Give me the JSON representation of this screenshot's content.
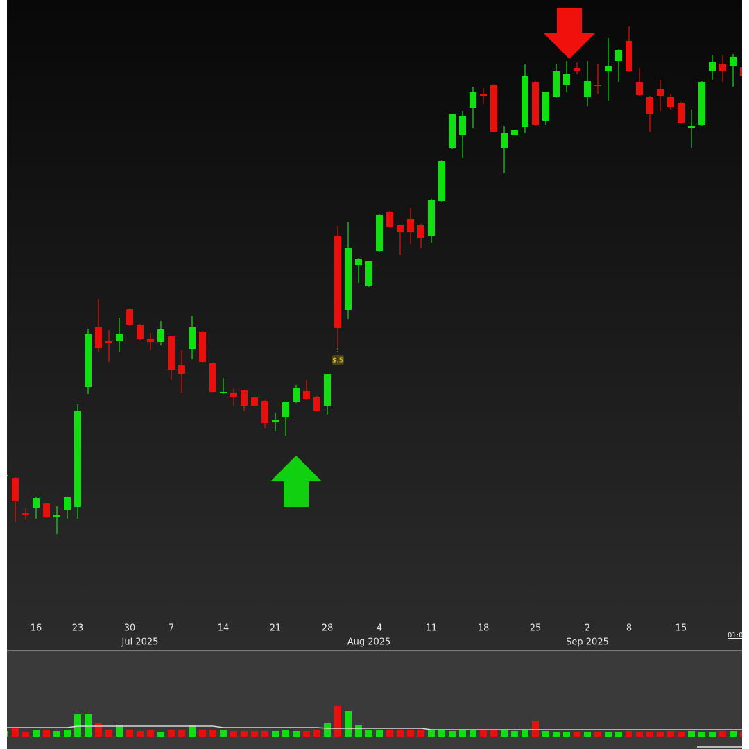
{
  "chart_data": {
    "type": "candlestick",
    "categories": [
      null,
      null,
      null,
      "16",
      null,
      null,
      null,
      "23",
      null,
      null,
      null,
      null,
      "30",
      null,
      null,
      null,
      "7",
      null,
      null,
      null,
      null,
      "14",
      null,
      null,
      null,
      null,
      "21",
      null,
      null,
      null,
      null,
      "28",
      null,
      null,
      null,
      null,
      "4",
      null,
      null,
      null,
      null,
      "11",
      null,
      null,
      null,
      null,
      "18",
      null,
      null,
      null,
      null,
      "25",
      null,
      null,
      null,
      null,
      "2",
      null,
      null,
      null,
      "8",
      null,
      null,
      null,
      null,
      "15",
      null,
      null,
      null,
      null,
      null,
      null
    ],
    "month_labels": [
      null,
      null,
      null,
      null,
      null,
      null,
      null,
      null,
      null,
      null,
      null,
      null,
      null,
      "Jul 2025",
      null,
      null,
      null,
      null,
      null,
      null,
      null,
      null,
      null,
      null,
      null,
      null,
      null,
      null,
      null,
      null,
      null,
      null,
      null,
      null,
      null,
      "Aug 2025",
      null,
      null,
      null,
      null,
      null,
      null,
      null,
      null,
      null,
      null,
      null,
      null,
      null,
      null,
      null,
      null,
      null,
      null,
      null,
      null,
      "Sep 2025",
      null,
      null,
      null,
      null,
      null,
      null,
      null,
      null,
      null,
      null,
      null,
      null,
      null,
      null,
      null
    ],
    "open": [
      21.3,
      21.1,
      16.0,
      16.8,
      17.4,
      15.4,
      16.4,
      16.9,
      34.2,
      42.8,
      40.8,
      40.8,
      45.4,
      43.2,
      41.1,
      40.7,
      41.5,
      37.3,
      39.7,
      42.2,
      37.6,
      33.4,
      33.4,
      33.7,
      32.7,
      32.2,
      29.1,
      29.9,
      32.0,
      33.6,
      32.8,
      31.5,
      56.0,
      45.3,
      51.8,
      48.7,
      53.8,
      59.5,
      57.5,
      58.4,
      57.6,
      56.0,
      61.0,
      68.6,
      70.5,
      74.4,
      76.4,
      77.8,
      68.7,
      70.6,
      71.7,
      78.2,
      72.6,
      76.0,
      77.8,
      80.2,
      76.0,
      77.8,
      79.7,
      81.2,
      84.1,
      78.2,
      76.0,
      77.2,
      76.0,
      75.2,
      71.5,
      72.0,
      79.8,
      80.7,
      80.5,
      80.3
    ],
    "high": [
      21.5,
      21.2,
      16.7,
      18.3,
      17.5,
      17.0,
      18.4,
      31.7,
      42.6,
      46.9,
      42.4,
      44.2,
      45.5,
      43.3,
      42.0,
      43.7,
      41.6,
      39.5,
      44.4,
      42.3,
      37.7,
      35.5,
      34.0,
      33.8,
      32.8,
      32.3,
      30.5,
      32.1,
      34.5,
      35.2,
      32.9,
      36.1,
      57.4,
      58.0,
      52.8,
      52.4,
      59.1,
      59.6,
      57.6,
      60.0,
      57.7,
      61.3,
      66.9,
      73.6,
      74.0,
      77.5,
      77.3,
      77.9,
      71.8,
      71.3,
      80.7,
      78.3,
      76.8,
      80.8,
      81.2,
      81.0,
      81.2,
      80.8,
      84.5,
      82.9,
      86.2,
      80.2,
      76.1,
      78.5,
      76.5,
      75.3,
      74.2,
      78.3,
      82.0,
      82.0,
      82.2,
      80.4
    ],
    "low": [
      21.3,
      14.8,
      15.0,
      15.2,
      15.3,
      13.0,
      15.2,
      15.2,
      33.2,
      39.3,
      37.8,
      39.2,
      43.1,
      41.0,
      39.5,
      40.2,
      35.2,
      33.3,
      38.2,
      37.7,
      33.4,
      33.2,
      31.5,
      30.8,
      31.4,
      28.3,
      27.8,
      27.2,
      31.9,
      32.3,
      30.7,
      30.2,
      40.0,
      44.0,
      49.2,
      48.6,
      53.7,
      57.2,
      53.3,
      54.8,
      54.2,
      55.0,
      60.9,
      68.5,
      67.2,
      71.5,
      75.0,
      70.9,
      65.0,
      70.5,
      70.8,
      71.9,
      72.0,
      75.9,
      76.7,
      79.3,
      74.7,
      76.5,
      75.5,
      78.2,
      79.6,
      76.2,
      71.0,
      74.0,
      74.2,
      72.2,
      68.7,
      71.9,
      78.5,
      78.2,
      77.5,
      78.9
    ],
    "close": [
      21.5,
      17.7,
      15.9,
      18.2,
      15.4,
      15.8,
      18.3,
      30.8,
      41.8,
      39.8,
      40.5,
      41.9,
      43.2,
      41.1,
      40.7,
      42.5,
      36.7,
      36.1,
      42.9,
      37.8,
      33.5,
      33.5,
      32.8,
      31.5,
      31.5,
      29.0,
      29.5,
      32.0,
      34.0,
      32.4,
      30.8,
      36.0,
      42.7,
      54.2,
      52.7,
      52.3,
      59.0,
      57.3,
      56.5,
      56.5,
      55.7,
      61.2,
      66.8,
      73.5,
      73.3,
      76.7,
      76.3,
      71.0,
      70.8,
      71.2,
      79.0,
      72.0,
      76.7,
      79.7,
      79.3,
      79.8,
      78.3,
      77.7,
      80.5,
      82.8,
      79.7,
      76.3,
      73.5,
      76.2,
      74.5,
      72.3,
      71.8,
      78.2,
      81.0,
      79.8,
      81.8,
      79.0
    ],
    "up_color": "#10e010",
    "down_color": "#e8100c",
    "ylim": [
      0,
      90
    ],
    "annotations": [
      {
        "text": "$.5",
        "index": 32
      }
    ],
    "time_label": "01:0",
    "volume": {
      "values": [
        8,
        12,
        7,
        10,
        10,
        8,
        10,
        32,
        32,
        20,
        10,
        17,
        10,
        8,
        10,
        6,
        10,
        10,
        16,
        10,
        10,
        10,
        8,
        8,
        8,
        8,
        8,
        10,
        8,
        8,
        10,
        20,
        44,
        37,
        16,
        10,
        10,
        10,
        10,
        10,
        10,
        10,
        10,
        8,
        10,
        10,
        10,
        10,
        10,
        8,
        10,
        23,
        8,
        6,
        6,
        6,
        6,
        6,
        6,
        6,
        8,
        6,
        6,
        6,
        8,
        6,
        8,
        6,
        6,
        8,
        8,
        6
      ],
      "ma_values": [
        13,
        13,
        13,
        13,
        13,
        13,
        13,
        15,
        15,
        15,
        15,
        15,
        15,
        15,
        15,
        15,
        15,
        15,
        15,
        15,
        15,
        13,
        13,
        13,
        13,
        13,
        13,
        13,
        13,
        13,
        13,
        12,
        12,
        12,
        12,
        12,
        12,
        12,
        12,
        12,
        12,
        10,
        10,
        10,
        10,
        10,
        10,
        10,
        10,
        10,
        10,
        10,
        10,
        10,
        10,
        10,
        10,
        10,
        10,
        10,
        10,
        10,
        10,
        10,
        10,
        10,
        10,
        10,
        10,
        10,
        10,
        10
      ],
      "ma_color": "#d8d8d8",
      "ylim": [
        0,
        100
      ]
    }
  }
}
